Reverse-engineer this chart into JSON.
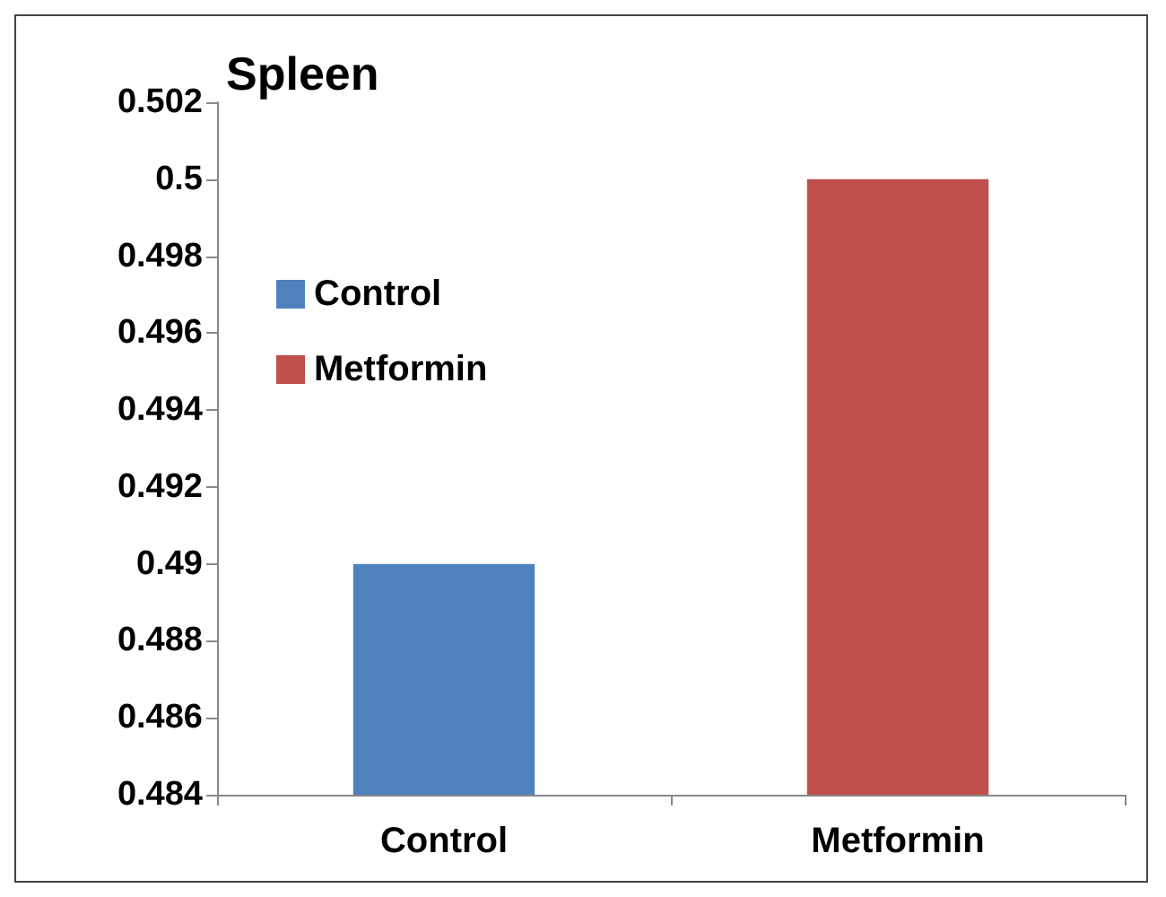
{
  "chart_data": {
    "type": "bar",
    "title": "Spleen",
    "categories": [
      "Control",
      "Metformin"
    ],
    "stacked": true,
    "series": [
      {
        "name": "Control",
        "color": "#4f81bd",
        "values": [
          0.49,
          null
        ]
      },
      {
        "name": "Metformin",
        "color": "#c0504d",
        "values": [
          null,
          0.5
        ]
      }
    ],
    "ylim": [
      0.484,
      0.502
    ],
    "yticks": [
      0.484,
      0.486,
      0.488,
      0.49,
      0.492,
      0.494,
      0.496,
      0.498,
      0.5,
      0.502
    ],
    "grid": false,
    "legend": "left"
  }
}
